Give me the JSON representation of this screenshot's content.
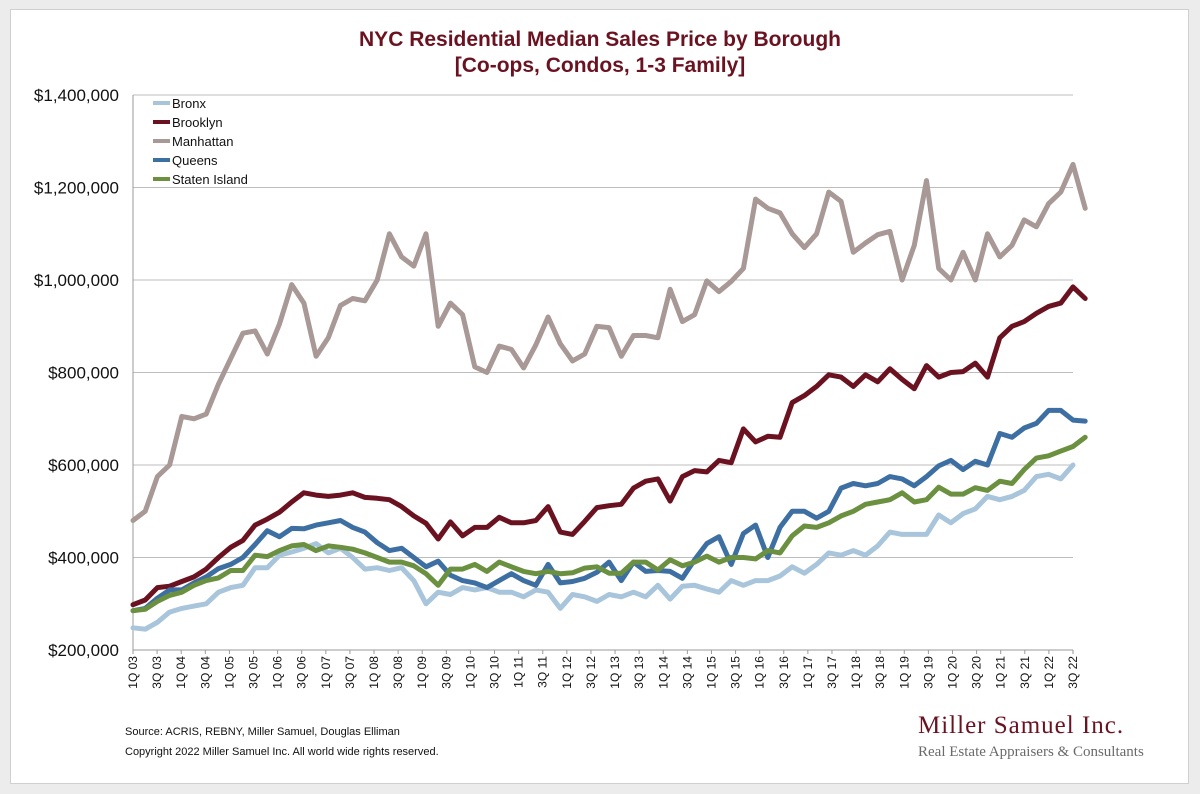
{
  "chart_data": {
    "type": "line",
    "title": "NYC Residential Median Sales Price by Borough",
    "subtitle": "[Co-ops, Condos, 1-3 Family]",
    "xlabel": "",
    "ylabel": "",
    "ylim": [
      200000,
      1400000
    ],
    "yticks": [
      200000,
      400000,
      600000,
      800000,
      1000000,
      1200000,
      1400000
    ],
    "ytick_labels": [
      "$200,000",
      "$400,000",
      "$600,000",
      "$800,000",
      "$1,000,000",
      "$1,200,000",
      "$1,400,000"
    ],
    "grid": "horizontal",
    "legend": "top-left",
    "x_labels": [
      "1Q 03",
      "3Q 03",
      "1Q 04",
      "3Q 04",
      "1Q 05",
      "3Q 05",
      "1Q 06",
      "3Q 06",
      "1Q 07",
      "3Q 07",
      "1Q 08",
      "3Q 08",
      "1Q 09",
      "3Q 09",
      "1Q 10",
      "3Q 10",
      "1Q 11",
      "3Q 11",
      "1Q 12",
      "3Q 12",
      "1Q 13",
      "3Q 13",
      "1Q 14",
      "3Q 14",
      "1Q 15",
      "3Q 15",
      "1Q 16",
      "3Q 16",
      "1Q 17",
      "3Q 17",
      "1Q 18",
      "3Q 18",
      "1Q 19",
      "3Q 19",
      "1Q 20",
      "3Q 20",
      "1Q 21",
      "3Q 21",
      "1Q 22",
      "3Q 22"
    ],
    "series": [
      {
        "name": "Bronx",
        "color": "#a8c5dc",
        "values": [
          248000,
          245000,
          260000,
          282000,
          290000,
          295000,
          300000,
          325000,
          335000,
          340000,
          378000,
          378000,
          405000,
          412000,
          420000,
          430000,
          410000,
          420000,
          400000,
          375000,
          378000,
          372000,
          378000,
          350000,
          300000,
          325000,
          320000,
          335000,
          330000,
          335000,
          325000,
          325000,
          315000,
          330000,
          325000,
          290000,
          320000,
          315000,
          305000,
          320000,
          315000,
          325000,
          315000,
          340000,
          310000,
          338000,
          340000,
          332000,
          325000,
          350000,
          340000,
          350000,
          350000,
          360000,
          380000,
          366000,
          385000,
          410000,
          405000,
          415000,
          405000,
          425000,
          455000,
          450000,
          450000,
          450000,
          492000,
          475000,
          495000,
          505000,
          532000,
          525000,
          532000,
          545000,
          575000,
          580000,
          570000,
          600000
        ]
      },
      {
        "name": "Brooklyn",
        "color": "#6b1221",
        "values": [
          298000,
          308000,
          335000,
          338000,
          348000,
          358000,
          375000,
          400000,
          422000,
          437000,
          470000,
          483000,
          498000,
          520000,
          540000,
          535000,
          532000,
          535000,
          540000,
          530000,
          528000,
          525000,
          510000,
          490000,
          474000,
          440000,
          477000,
          447000,
          465000,
          465000,
          487000,
          475000,
          475000,
          480000,
          510000,
          455000,
          450000,
          478000,
          508000,
          512000,
          515000,
          550000,
          565000,
          570000,
          522000,
          575000,
          588000,
          585000,
          610000,
          605000,
          678000,
          650000,
          662000,
          660000,
          735000,
          750000,
          770000,
          795000,
          790000,
          770000,
          795000,
          780000,
          808000,
          785000,
          765000,
          815000,
          790000,
          800000,
          802000,
          820000,
          790000,
          875000,
          900000,
          910000,
          928000,
          943000,
          950000,
          985000,
          960000
        ]
      },
      {
        "name": "Manhattan",
        "color": "#a89896",
        "values": [
          480000,
          500000,
          575000,
          600000,
          705000,
          700000,
          710000,
          775000,
          830000,
          885000,
          890000,
          840000,
          905000,
          990000,
          950000,
          835000,
          875000,
          945000,
          960000,
          955000,
          1000000,
          1100000,
          1050000,
          1030000,
          1100000,
          900000,
          950000,
          925000,
          812000,
          800000,
          857000,
          850000,
          810000,
          860000,
          920000,
          862000,
          825000,
          840000,
          900000,
          897000,
          835000,
          880000,
          880000,
          875000,
          980000,
          910000,
          925000,
          998000,
          975000,
          997000,
          1025000,
          1175000,
          1155000,
          1145000,
          1100000,
          1070000,
          1100000,
          1190000,
          1170000,
          1060000,
          1080000,
          1098000,
          1105000,
          1000000,
          1075000,
          1215000,
          1025000,
          1000000,
          1060000,
          1000000,
          1100000,
          1050000,
          1075000,
          1130000,
          1115000,
          1165000,
          1190000,
          1250000,
          1155000
        ]
      },
      {
        "name": "Queens",
        "color": "#3d6fa3",
        "values": [
          285000,
          290000,
          312000,
          330000,
          330000,
          345000,
          358000,
          376000,
          385000,
          400000,
          428000,
          458000,
          445000,
          463000,
          462000,
          470000,
          475000,
          480000,
          465000,
          455000,
          432000,
          415000,
          420000,
          400000,
          380000,
          392000,
          362000,
          350000,
          345000,
          335000,
          350000,
          365000,
          350000,
          340000,
          385000,
          345000,
          348000,
          355000,
          368000,
          390000,
          350000,
          390000,
          370000,
          372000,
          370000,
          355000,
          395000,
          430000,
          445000,
          385000,
          452000,
          470000,
          400000,
          465000,
          500000,
          500000,
          485000,
          500000,
          550000,
          560000,
          555000,
          560000,
          575000,
          570000,
          555000,
          575000,
          598000,
          610000,
          590000,
          608000,
          600000,
          668000,
          660000,
          680000,
          690000,
          718000,
          718000,
          697000,
          695000
        ]
      },
      {
        "name": "Staten Island",
        "color": "#6a9040",
        "values": [
          285000,
          288000,
          305000,
          318000,
          325000,
          340000,
          350000,
          356000,
          372000,
          372000,
          405000,
          402000,
          415000,
          425000,
          428000,
          415000,
          425000,
          422000,
          418000,
          410000,
          400000,
          390000,
          390000,
          382000,
          365000,
          340000,
          375000,
          375000,
          385000,
          370000,
          390000,
          380000,
          370000,
          365000,
          370000,
          365000,
          367000,
          377000,
          380000,
          366000,
          366000,
          390000,
          390000,
          373000,
          395000,
          382000,
          390000,
          403000,
          390000,
          400000,
          400000,
          397000,
          415000,
          410000,
          447000,
          468000,
          465000,
          475000,
          490000,
          500000,
          515000,
          520000,
          525000,
          540000,
          520000,
          525000,
          552000,
          537000,
          537000,
          551000,
          545000,
          565000,
          560000,
          590000,
          615000,
          620000,
          630000,
          640000,
          660000
        ]
      }
    ]
  },
  "source_note": "Source: ACRIS, REBNY, Miller Samuel, Douglas Elliman",
  "copyright_note": "Copyright 2022 Miller Samuel Inc.  All world wide rights reserved.",
  "brand": {
    "name": "Miller Samuel Inc.",
    "tagline": "Real Estate Appraisers & Consultants"
  },
  "colors": {
    "title": "#6b1221",
    "grid": "#bdbdbd",
    "axis": "#9a9a9a",
    "brand": "#6b1221"
  }
}
